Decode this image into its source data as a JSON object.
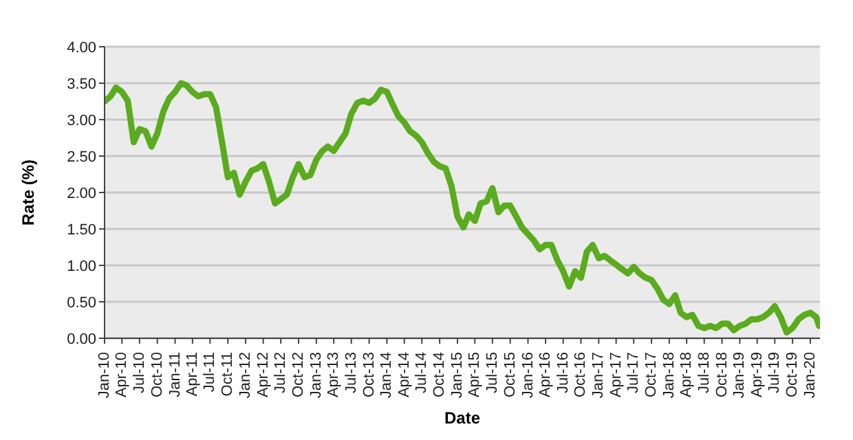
{
  "chart_data": {
    "type": "line",
    "xlabel": "Date",
    "ylabel": "Rate (%)",
    "x": [
      "2010-01",
      "2010-02",
      "2010-03",
      "2010-04",
      "2010-05",
      "2010-06",
      "2010-07",
      "2010-08",
      "2010-09",
      "2010-10",
      "2010-11",
      "2010-12",
      "2011-01",
      "2011-02",
      "2011-03",
      "2011-04",
      "2011-05",
      "2011-06",
      "2011-07",
      "2011-08",
      "2011-09",
      "2011-10",
      "2011-11",
      "2011-12",
      "2012-01",
      "2012-02",
      "2012-03",
      "2012-04",
      "2012-05",
      "2012-06",
      "2012-07",
      "2012-08",
      "2012-09",
      "2012-10",
      "2012-11",
      "2012-12",
      "2013-01",
      "2013-02",
      "2013-03",
      "2013-04",
      "2013-05",
      "2013-06",
      "2013-07",
      "2013-08",
      "2013-09",
      "2013-10",
      "2013-11",
      "2013-12",
      "2014-01",
      "2014-02",
      "2014-03",
      "2014-04",
      "2014-05",
      "2014-06",
      "2014-07",
      "2014-08",
      "2014-09",
      "2014-10",
      "2014-11",
      "2014-12",
      "2015-01",
      "2015-02",
      "2015-03",
      "2015-04",
      "2015-05",
      "2015-06",
      "2015-07",
      "2015-08",
      "2015-09",
      "2015-10",
      "2015-11",
      "2015-12",
      "2016-01",
      "2016-02",
      "2016-03",
      "2016-04",
      "2016-05",
      "2016-06",
      "2016-07",
      "2016-08",
      "2016-09",
      "2016-10",
      "2016-11",
      "2016-12",
      "2017-01",
      "2017-02",
      "2017-03",
      "2017-04",
      "2017-05",
      "2017-06",
      "2017-07",
      "2017-08",
      "2017-09",
      "2017-10",
      "2017-11",
      "2017-12",
      "2018-01",
      "2018-02",
      "2018-03",
      "2018-04",
      "2018-05",
      "2018-06",
      "2018-07",
      "2018-08",
      "2018-09",
      "2018-10",
      "2018-11",
      "2018-12",
      "2019-01",
      "2019-02",
      "2019-03",
      "2019-04",
      "2019-05",
      "2019-06",
      "2019-07",
      "2019-08",
      "2019-09",
      "2019-10",
      "2019-11",
      "2019-12",
      "2020-01",
      "2020-02",
      "2020-02-15"
    ],
    "series": [
      {
        "color": "#5aab1e",
        "values": [
          3.25,
          3.32,
          3.44,
          3.38,
          3.26,
          2.69,
          2.87,
          2.84,
          2.63,
          2.81,
          3.11,
          3.29,
          3.38,
          3.5,
          3.47,
          3.38,
          3.32,
          3.35,
          3.35,
          3.17,
          2.69,
          2.21,
          2.27,
          1.97,
          2.15,
          2.3,
          2.33,
          2.39,
          2.15,
          1.85,
          1.91,
          1.97,
          2.21,
          2.39,
          2.21,
          2.24,
          2.45,
          2.57,
          2.63,
          2.57,
          2.69,
          2.81,
          3.08,
          3.23,
          3.26,
          3.23,
          3.29,
          3.41,
          3.38,
          3.2,
          3.05,
          2.96,
          2.84,
          2.78,
          2.69,
          2.54,
          2.42,
          2.36,
          2.33,
          2.09,
          1.67,
          1.52,
          1.7,
          1.61,
          1.85,
          1.88,
          2.06,
          1.73,
          1.82,
          1.82,
          1.67,
          1.52,
          1.43,
          1.34,
          1.22,
          1.28,
          1.28,
          1.07,
          0.92,
          0.71,
          0.92,
          0.83,
          1.19,
          1.28,
          1.1,
          1.13,
          1.07,
          1.01,
          0.95,
          0.89,
          0.98,
          0.89,
          0.83,
          0.8,
          0.68,
          0.53,
          0.47,
          0.59,
          0.35,
          0.29,
          0.32,
          0.17,
          0.14,
          0.17,
          0.14,
          0.2,
          0.2,
          0.11,
          0.17,
          0.2,
          0.26,
          0.26,
          0.29,
          0.35,
          0.44,
          0.29,
          0.08,
          0.14,
          0.26,
          0.32,
          0.35,
          0.29,
          0.17
        ]
      }
    ],
    "xlim": [
      "2010-01",
      "2020-02-20"
    ],
    "xticks": [
      {
        "value": "2010-01",
        "label": "Jan-10"
      },
      {
        "value": "2010-04",
        "label": "Apr-10"
      },
      {
        "value": "2010-07",
        "label": "Jul-10"
      },
      {
        "value": "2010-10",
        "label": "Oct-10"
      },
      {
        "value": "2011-01",
        "label": "Jan-11"
      },
      {
        "value": "2011-04",
        "label": "Apr-11"
      },
      {
        "value": "2011-07",
        "label": "Jul-11"
      },
      {
        "value": "2011-10",
        "label": "Oct-11"
      },
      {
        "value": "2012-01",
        "label": "Jan-12"
      },
      {
        "value": "2012-04",
        "label": "Apr-12"
      },
      {
        "value": "2012-07",
        "label": "Jul-12"
      },
      {
        "value": "2012-10",
        "label": "Oct-12"
      },
      {
        "value": "2013-01",
        "label": "Jan-13"
      },
      {
        "value": "2013-04",
        "label": "Apr-13"
      },
      {
        "value": "2013-07",
        "label": "Jul-13"
      },
      {
        "value": "2013-10",
        "label": "Oct-13"
      },
      {
        "value": "2014-01",
        "label": "Jan-14"
      },
      {
        "value": "2014-04",
        "label": "Apr-14"
      },
      {
        "value": "2014-07",
        "label": "Jul-14"
      },
      {
        "value": "2014-10",
        "label": "Oct-14"
      },
      {
        "value": "2015-01",
        "label": "Jan-15"
      },
      {
        "value": "2015-04",
        "label": "Apr-15"
      },
      {
        "value": "2015-07",
        "label": "Jul-15"
      },
      {
        "value": "2015-10",
        "label": "Oct-15"
      },
      {
        "value": "2016-01",
        "label": "Jan-16"
      },
      {
        "value": "2016-04",
        "label": "Apr-16"
      },
      {
        "value": "2016-07",
        "label": "Jul-16"
      },
      {
        "value": "2016-10",
        "label": "Oct-16"
      },
      {
        "value": "2017-01",
        "label": "Jan-17"
      },
      {
        "value": "2017-04",
        "label": "Apr-17"
      },
      {
        "value": "2017-07",
        "label": "Jul-17"
      },
      {
        "value": "2017-10",
        "label": "Oct-17"
      },
      {
        "value": "2018-01",
        "label": "Jan-18"
      },
      {
        "value": "2018-04",
        "label": "Apr-18"
      },
      {
        "value": "2018-07",
        "label": "Jul-18"
      },
      {
        "value": "2018-10",
        "label": "Oct-18"
      },
      {
        "value": "2019-01",
        "label": "Jan-19"
      },
      {
        "value": "2019-04",
        "label": "Apr-19"
      },
      {
        "value": "2019-07",
        "label": "Jul-19"
      },
      {
        "value": "2019-10",
        "label": "Oct-19"
      },
      {
        "value": "2020-01",
        "label": "Jan-20"
      }
    ],
    "ylim": [
      0,
      4
    ],
    "yticks": [
      {
        "value": 0,
        "label": "0.00"
      },
      {
        "value": 0.5,
        "label": "0.50"
      },
      {
        "value": 1,
        "label": "1.00"
      },
      {
        "value": 1.5,
        "label": "1.50"
      },
      {
        "value": 2,
        "label": "2.00"
      },
      {
        "value": 2.5,
        "label": "2.50"
      },
      {
        "value": 3,
        "label": "3.00"
      },
      {
        "value": 3.5,
        "label": "3.50"
      },
      {
        "value": 4,
        "label": "4.00"
      }
    ],
    "grid": "y",
    "legend": false,
    "marker": "none",
    "line_style": "solid"
  }
}
